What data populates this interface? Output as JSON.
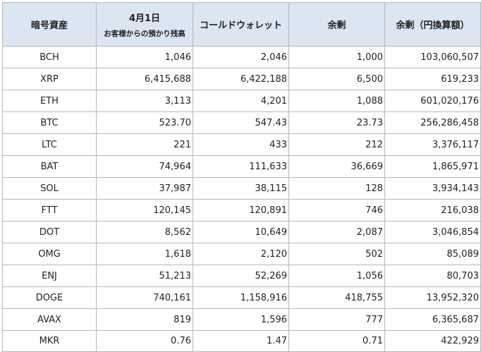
{
  "headers": {
    "asset": "暗号資産",
    "date_line1": "4月1日",
    "date_line2": "お客様からの預かり残高",
    "cold": "コールドウォレット",
    "surplus": "余剰",
    "surplus_jpy": "余剰（円換算額）"
  },
  "rows": [
    {
      "asset": "BCH",
      "balance": "1,046",
      "cold": "2,046",
      "surplus": "1,000",
      "jpy": "103,060,507"
    },
    {
      "asset": "XRP",
      "balance": "6,415,688",
      "cold": "6,422,188",
      "surplus": "6,500",
      "jpy": "619,233"
    },
    {
      "asset": "ETH",
      "balance": "3,113",
      "cold": "4,201",
      "surplus": "1,088",
      "jpy": "601,020,176"
    },
    {
      "asset": "BTC",
      "balance": "523.70",
      "cold": "547.43",
      "surplus": "23.73",
      "jpy": "256,286,458"
    },
    {
      "asset": "LTC",
      "balance": "221",
      "cold": "433",
      "surplus": "212",
      "jpy": "3,376,117"
    },
    {
      "asset": "BAT",
      "balance": "74,964",
      "cold": "111,633",
      "surplus": "36,669",
      "jpy": "1,865,971"
    },
    {
      "asset": "SOL",
      "balance": "37,987",
      "cold": "38,115",
      "surplus": "128",
      "jpy": "3,934,143"
    },
    {
      "asset": "FTT",
      "balance": "120,145",
      "cold": "120,891",
      "surplus": "746",
      "jpy": "216,038"
    },
    {
      "asset": "DOT",
      "balance": "8,562",
      "cold": "10,649",
      "surplus": "2,087",
      "jpy": "3,046,854"
    },
    {
      "asset": "OMG",
      "balance": "1,618",
      "cold": "2,120",
      "surplus": "502",
      "jpy": "85,089"
    },
    {
      "asset": "ENJ",
      "balance": "51,213",
      "cold": "52,269",
      "surplus": "1,056",
      "jpy": "80,703"
    },
    {
      "asset": "DOGE",
      "balance": "740,161",
      "cold": "1,158,916",
      "surplus": "418,755",
      "jpy": "13,952,320"
    },
    {
      "asset": "AVAX",
      "balance": "819",
      "cold": "1,596",
      "surplus": "777",
      "jpy": "6,365,687"
    },
    {
      "asset": "MKR",
      "balance": "0.76",
      "cold": "1.47",
      "surplus": "0.71",
      "jpy": "422,929"
    }
  ],
  "colors": {
    "header_bg": "#dce5f2",
    "border": "#b7b7b7",
    "text": "#222222"
  }
}
